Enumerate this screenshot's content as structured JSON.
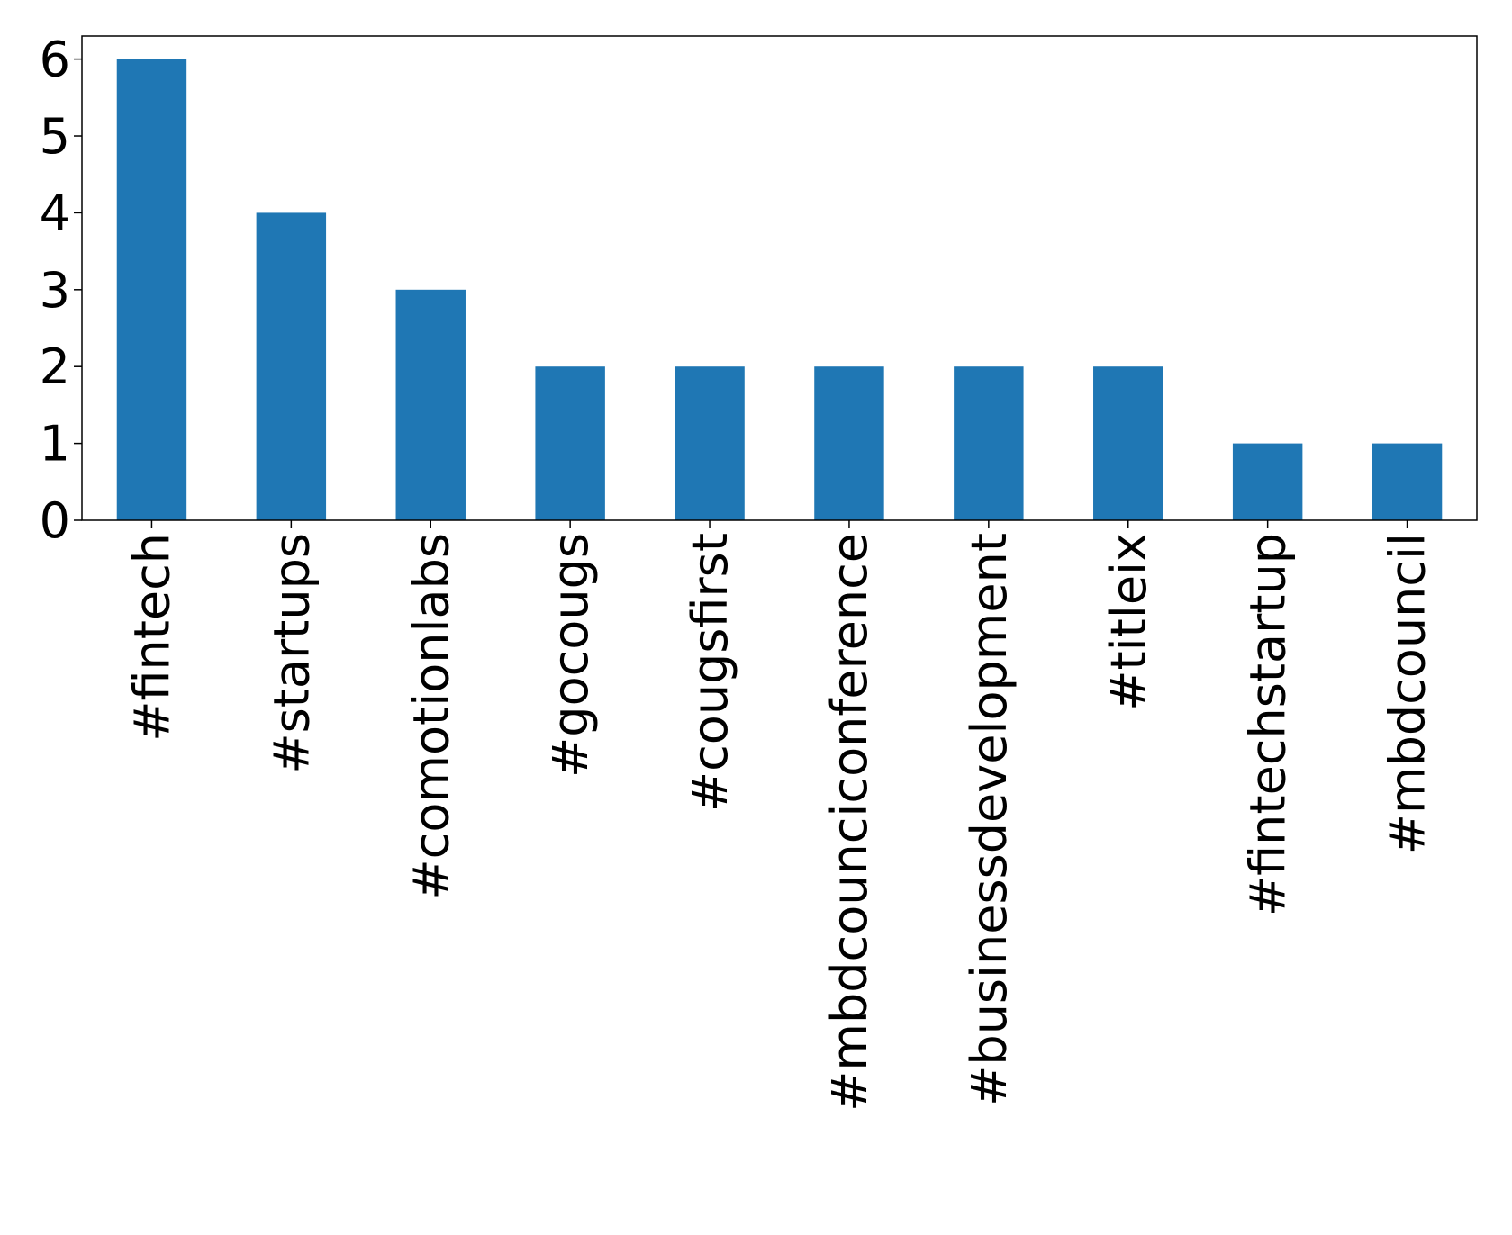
{
  "chart_data": {
    "type": "bar",
    "categories": [
      "#fintech",
      "#startups",
      "#comotionlabs",
      "#gocougs",
      "#cougsfirst",
      "#mbdcounciconference",
      "#businessdevelopment",
      "#titleix",
      "#fintechstartup",
      "#mbdcouncil"
    ],
    "values": [
      6,
      4,
      3,
      2,
      2,
      2,
      2,
      2,
      1,
      1
    ],
    "color": "#1f77b4",
    "ylim": [
      0,
      6.3
    ],
    "yticks": [
      0,
      1,
      2,
      3,
      4,
      5,
      6
    ],
    "grid": false
  }
}
